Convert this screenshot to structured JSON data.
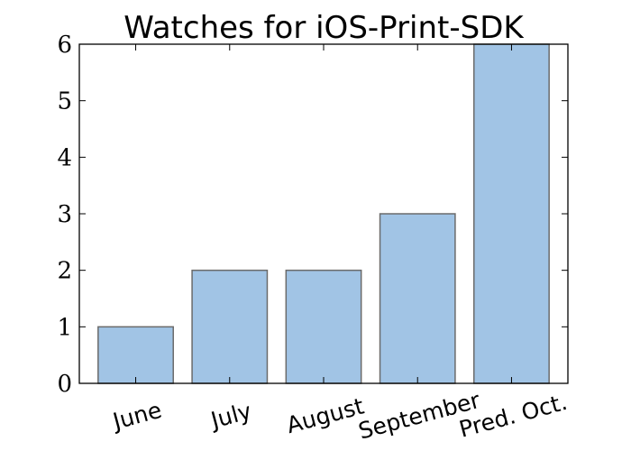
{
  "chart_data": {
    "type": "bar",
    "title": "Watches for iOS-Print-SDK",
    "xlabel": "",
    "ylabel": "",
    "categories": [
      "June",
      "July",
      "August",
      "September",
      "Pred. Oct."
    ],
    "values": [
      1,
      2,
      2,
      3,
      6
    ],
    "ylim": [
      0,
      6
    ],
    "yticks": [
      "0",
      "1",
      "2",
      "3",
      "4",
      "5",
      "6"
    ],
    "bar_color": "#a1c4e5",
    "bar_edge_color": "#6b6b6b",
    "grid": false,
    "legend": "none"
  }
}
